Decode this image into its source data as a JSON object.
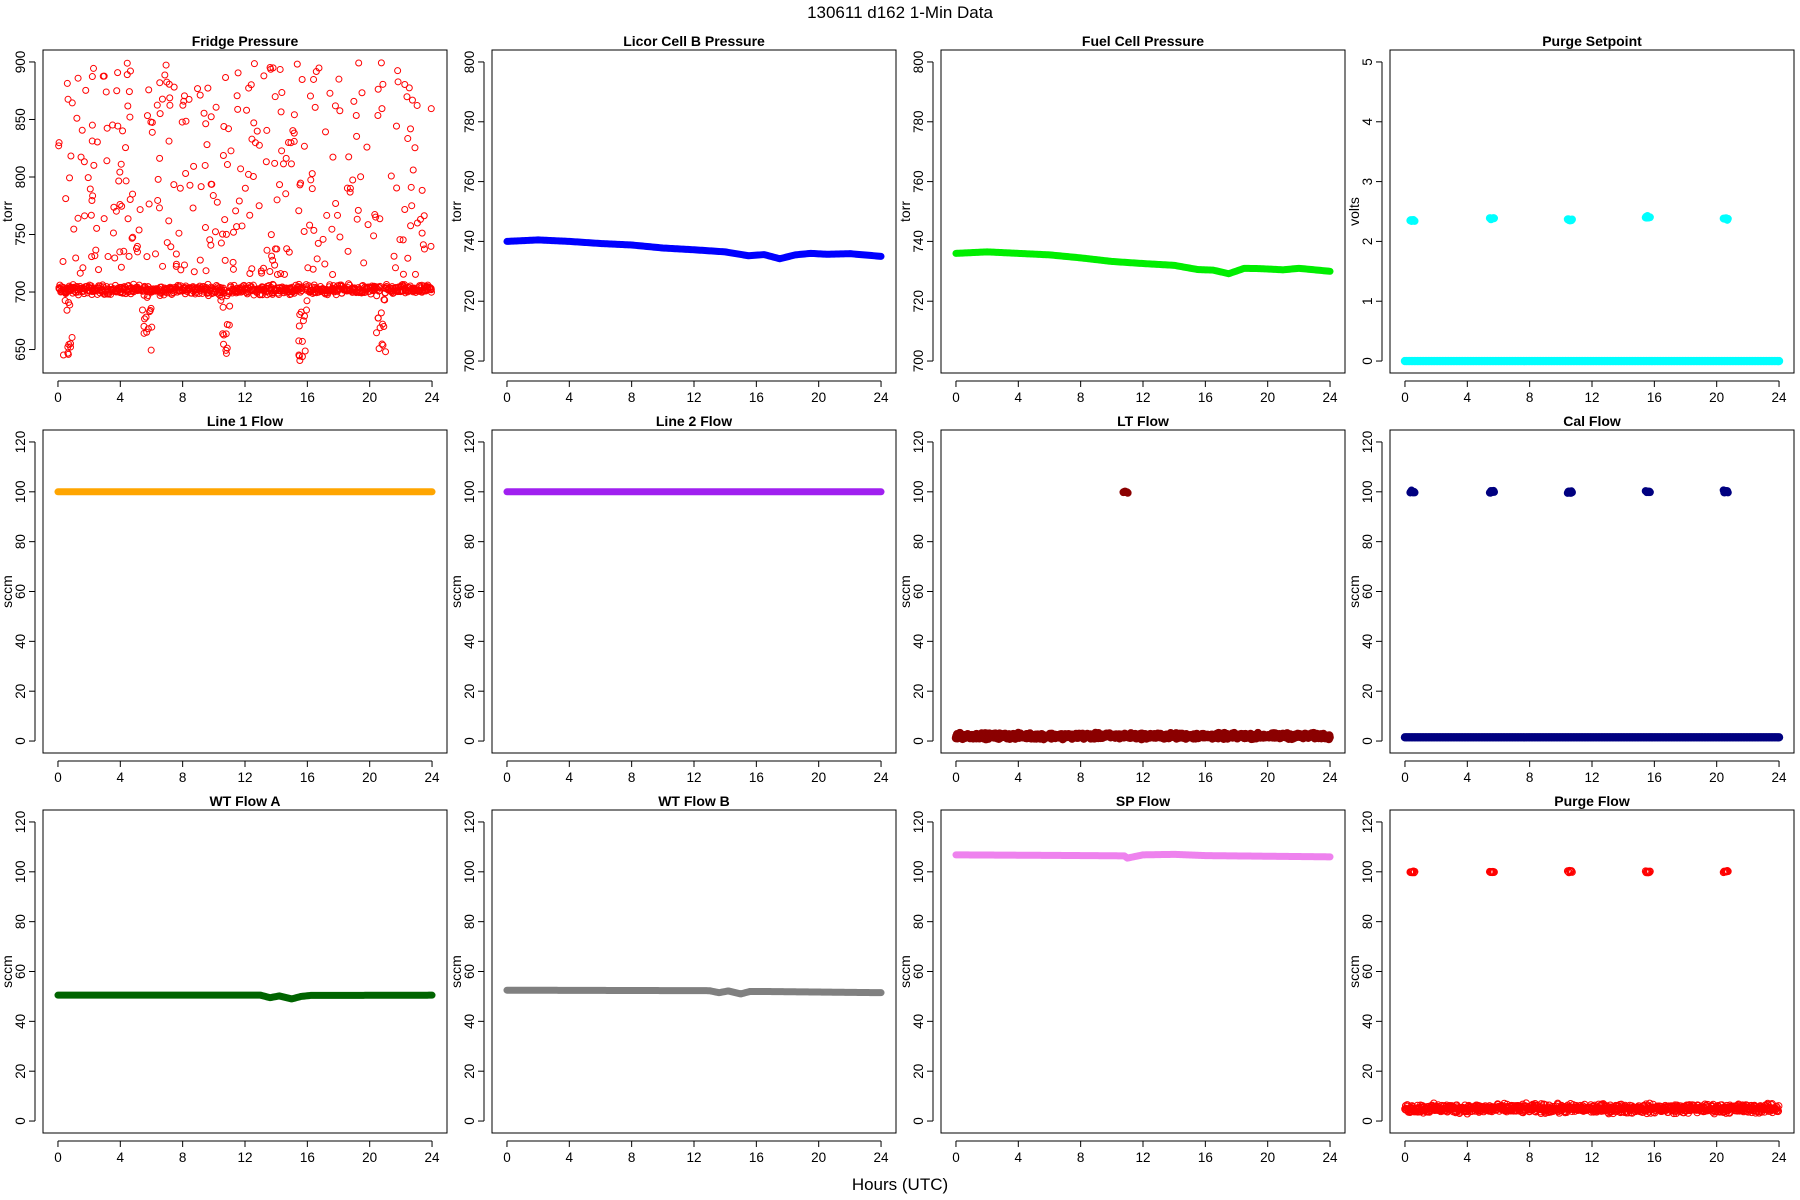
{
  "page": {
    "title": "130611    d162    1-Min Data",
    "xlabel": "Hours (UTC)"
  },
  "colors": {
    "red": "#ff0000",
    "blue": "#0000ff",
    "green": "#00ee00",
    "cyan": "#00ffff",
    "orange": "#ffa500",
    "purple": "#a020f0",
    "darkred": "#8b0000",
    "navy": "#000080",
    "darkgreen": "#006400",
    "gray": "#808080",
    "violet": "#ee82ee"
  },
  "chart_data": [
    {
      "type": "scatter",
      "title": "Fridge Pressure",
      "ylabel": "torr",
      "xlim": [
        0,
        24
      ],
      "ylim": [
        640,
        900
      ],
      "xticks": [
        0,
        4,
        8,
        12,
        16,
        20,
        24
      ],
      "yticks": [
        650,
        700,
        750,
        800,
        850,
        900
      ],
      "color": "#ff0000",
      "marker": "open-circle",
      "series_description": "baseline near 702 torr with scattered outliers up to 900 and dips down to about 640 near hours 0.5, 5.5, 10.5, 15.5, 20.5; gaps in baseline near hours 5.8, 10.8, 15.8, 20.8",
      "baseline": 702,
      "baseline_spread": 6,
      "outlier_range": [
        715,
        900
      ],
      "dips": [
        {
          "x": 0.5,
          "min": 645
        },
        {
          "x": 5.6,
          "min": 642
        },
        {
          "x": 10.6,
          "min": 645
        },
        {
          "x": 15.6,
          "min": 638
        },
        {
          "x": 20.6,
          "min": 643
        }
      ]
    },
    {
      "type": "line",
      "title": "Licor Cell B Pressure",
      "ylabel": "torr",
      "xlim": [
        0,
        24
      ],
      "ylim": [
        700,
        800
      ],
      "xticks": [
        0,
        4,
        8,
        12,
        16,
        20,
        24
      ],
      "yticks": [
        700,
        720,
        740,
        760,
        780,
        800
      ],
      "color": "#0000ff",
      "x": [
        0,
        2,
        4,
        6,
        8,
        10,
        12,
        14,
        15.5,
        16.5,
        17.5,
        18.5,
        19.5,
        20.5,
        22,
        24
      ],
      "y": [
        740.0,
        740.5,
        740.0,
        739.3,
        738.8,
        737.8,
        737.2,
        736.5,
        735.2,
        735.6,
        734.2,
        735.5,
        736.0,
        735.7,
        735.9,
        735.0
      ]
    },
    {
      "type": "line",
      "title": "Fuel Cell Pressure",
      "ylabel": "torr",
      "xlim": [
        0,
        24
      ],
      "ylim": [
        700,
        800
      ],
      "xticks": [
        0,
        4,
        8,
        12,
        16,
        20,
        24
      ],
      "yticks": [
        700,
        720,
        740,
        760,
        780,
        800
      ],
      "color": "#00ee00",
      "x": [
        0,
        2,
        4,
        6,
        8,
        10,
        12,
        14,
        15.5,
        16.5,
        17.5,
        18.5,
        19.5,
        21,
        22,
        24
      ],
      "y": [
        736.0,
        736.5,
        736.0,
        735.5,
        734.5,
        733.3,
        732.6,
        732.0,
        730.6,
        730.4,
        729.2,
        731.0,
        730.9,
        730.5,
        731.0,
        730.0
      ]
    },
    {
      "type": "scatter",
      "title": "Purge Setpoint",
      "ylabel": "volts",
      "xlim": [
        0,
        24
      ],
      "ylim": [
        0,
        5
      ],
      "xticks": [
        0,
        4,
        8,
        12,
        16,
        20,
        24
      ],
      "yticks": [
        0,
        1,
        2,
        3,
        4,
        5
      ],
      "color": "#00ffff",
      "baseline": 0,
      "clusters": [
        {
          "x": 0.5,
          "y": 2.35
        },
        {
          "x": 5.6,
          "y": 2.38
        },
        {
          "x": 10.6,
          "y": 2.36
        },
        {
          "x": 15.6,
          "y": 2.4
        },
        {
          "x": 20.6,
          "y": 2.38
        }
      ]
    },
    {
      "type": "line",
      "title": "Line 1 Flow",
      "ylabel": "sccm",
      "xlim": [
        0,
        24
      ],
      "ylim": [
        0,
        120
      ],
      "xticks": [
        0,
        4,
        8,
        12,
        16,
        20,
        24
      ],
      "yticks": [
        0,
        20,
        40,
        60,
        80,
        100,
        120
      ],
      "color": "#ffa500",
      "x": [
        0,
        24
      ],
      "y": [
        100,
        100
      ]
    },
    {
      "type": "line",
      "title": "Line 2 Flow",
      "ylabel": "sccm",
      "xlim": [
        0,
        24
      ],
      "ylim": [
        0,
        120
      ],
      "xticks": [
        0,
        4,
        8,
        12,
        16,
        20,
        24
      ],
      "yticks": [
        0,
        20,
        40,
        60,
        80,
        100,
        120
      ],
      "color": "#a020f0",
      "x": [
        0,
        24
      ],
      "y": [
        100,
        100
      ]
    },
    {
      "type": "scatter",
      "title": "LT Flow",
      "ylabel": "sccm",
      "xlim": [
        0,
        24
      ],
      "ylim": [
        0,
        120
      ],
      "xticks": [
        0,
        4,
        8,
        12,
        16,
        20,
        24
      ],
      "yticks": [
        0,
        20,
        40,
        60,
        80,
        100,
        120
      ],
      "color": "#8b0000",
      "baseline": 2,
      "baseline_spread": 1.5,
      "clusters": [
        {
          "x": 10.9,
          "y": 100
        }
      ]
    },
    {
      "type": "scatter",
      "title": "Cal Flow",
      "ylabel": "sccm",
      "xlim": [
        0,
        24
      ],
      "ylim": [
        0,
        120
      ],
      "xticks": [
        0,
        4,
        8,
        12,
        16,
        20,
        24
      ],
      "yticks": [
        0,
        20,
        40,
        60,
        80,
        100,
        120
      ],
      "color": "#000080",
      "baseline": 1.5,
      "clusters": [
        {
          "x": 0.5,
          "y": 100
        },
        {
          "x": 5.6,
          "y": 100
        },
        {
          "x": 10.6,
          "y": 100
        },
        {
          "x": 15.6,
          "y": 100
        },
        {
          "x": 20.6,
          "y": 100
        }
      ]
    },
    {
      "type": "line",
      "title": "WT Flow A",
      "ylabel": "sccm",
      "xlim": [
        0,
        24
      ],
      "ylim": [
        0,
        120
      ],
      "xticks": [
        0,
        4,
        8,
        12,
        16,
        20,
        24
      ],
      "yticks": [
        0,
        20,
        40,
        60,
        80,
        100,
        120
      ],
      "color": "#006400",
      "x": [
        0,
        13,
        13.6,
        14.2,
        15,
        15.6,
        16.2,
        24
      ],
      "y": [
        50.5,
        50.5,
        49.5,
        50.2,
        49.0,
        50.0,
        50.4,
        50.5
      ]
    },
    {
      "type": "line",
      "title": "WT Flow B",
      "ylabel": "sccm",
      "xlim": [
        0,
        24
      ],
      "ylim": [
        0,
        120
      ],
      "xticks": [
        0,
        4,
        8,
        12,
        16,
        20,
        24
      ],
      "yticks": [
        0,
        20,
        40,
        60,
        80,
        100,
        120
      ],
      "color": "#808080",
      "x": [
        0,
        13,
        13.6,
        14.2,
        15,
        15.6,
        16.2,
        24
      ],
      "y": [
        52.5,
        52.3,
        51.5,
        52.2,
        51.0,
        52.0,
        52.0,
        51.5
      ]
    },
    {
      "type": "line",
      "title": "SP Flow",
      "ylabel": "sccm",
      "xlim": [
        0,
        24
      ],
      "ylim": [
        0,
        120
      ],
      "xticks": [
        0,
        4,
        8,
        12,
        16,
        20,
        24
      ],
      "yticks": [
        0,
        20,
        40,
        60,
        80,
        100,
        120
      ],
      "color": "#ee82ee",
      "x": [
        0,
        6,
        10.8,
        11.0,
        12,
        14,
        16,
        24
      ],
      "y": [
        106.8,
        106.6,
        106.4,
        105.5,
        106.8,
        107.0,
        106.5,
        106.0
      ]
    },
    {
      "type": "scatter",
      "title": "Purge Flow",
      "ylabel": "sccm",
      "xlim": [
        0,
        24
      ],
      "ylim": [
        0,
        120
      ],
      "xticks": [
        0,
        4,
        8,
        12,
        16,
        20,
        24
      ],
      "yticks": [
        0,
        20,
        40,
        60,
        80,
        100,
        120
      ],
      "color": "#ff0000",
      "marker": "open-circle",
      "baseline": 5,
      "baseline_spread": 2.5,
      "clusters": [
        {
          "x": 0.5,
          "y": 100
        },
        {
          "x": 5.6,
          "y": 100
        },
        {
          "x": 10.6,
          "y": 100
        },
        {
          "x": 15.6,
          "y": 100
        },
        {
          "x": 20.6,
          "y": 100
        }
      ]
    }
  ]
}
